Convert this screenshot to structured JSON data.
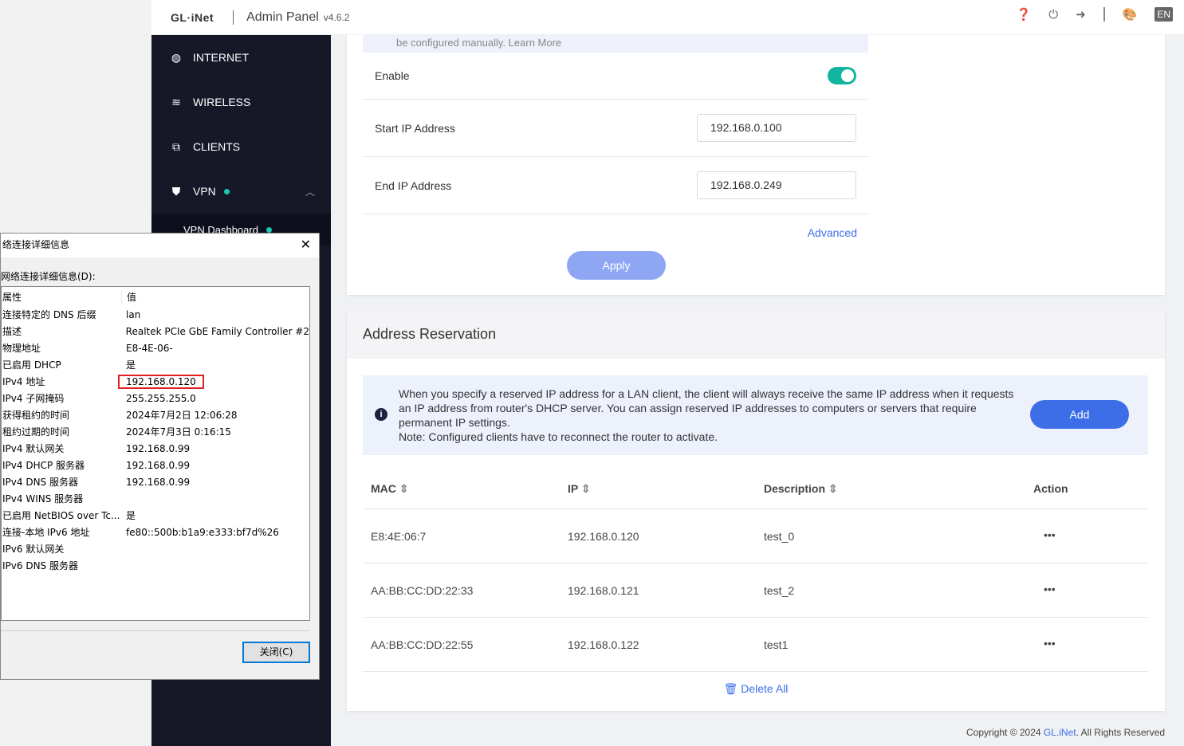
{
  "header": {
    "logo": "GL·iNet",
    "title": "Admin Panel",
    "version": "v4.6.2",
    "lang": "EN",
    "icons": [
      "help-icon",
      "power-icon",
      "logout-icon",
      "theme-palette-icon"
    ]
  },
  "sidebar": {
    "items": [
      {
        "label": "INTERNET",
        "icon": "globe-icon"
      },
      {
        "label": "WIRELESS",
        "icon": "wifi-icon"
      },
      {
        "label": "CLIENTS",
        "icon": "clients-icon"
      },
      {
        "label": "VPN",
        "icon": "shield-icon"
      }
    ],
    "sub": "VPN Dashboard"
  },
  "dhcp": {
    "note": "be configured manually. Learn More",
    "enable_label": "Enable",
    "enabled": true,
    "start_label": "Start IP Address",
    "start_value": "192.168.0.100",
    "end_label": "End IP Address",
    "end_value": "192.168.0.249",
    "advanced": "Advanced",
    "apply": "Apply"
  },
  "reservation": {
    "title": "Address Reservation",
    "info": "When you specify a reserved IP address for a LAN client, the client will always receive the same IP address when it requests an IP address from router's DHCP server. You can assign reserved IP addresses to computers or servers that require permanent IP settings.",
    "note": "Note: Configured clients have to reconnect the router to activate.",
    "add": "Add",
    "columns": [
      "MAC",
      "IP",
      "Description",
      "Action"
    ],
    "rows": [
      {
        "mac": "E8:4E:06:7",
        "ip": "192.168.0.120",
        "desc": "test_0",
        "action": "•••"
      },
      {
        "mac": "AA:BB:CC:DD:22:33",
        "ip": "192.168.0.121",
        "desc": "test_2",
        "action": "•••"
      },
      {
        "mac": "AA:BB:CC:DD:22:55",
        "ip": "192.168.0.122",
        "desc": "test1",
        "action": "•••"
      }
    ],
    "delete_all": "Delete All"
  },
  "footer": {
    "pre": "Copyright © 2024 ",
    "brand": "GL.iNet",
    "post": ". All Rights Reserved"
  },
  "dialog": {
    "title": "络连接详细信息",
    "label": "网络连接详细信息(D):",
    "col_prop": "属性",
    "col_val": "值",
    "close": "关闭(C)",
    "highlight_color": "#e02020",
    "rows": [
      [
        "连接特定的 DNS 后缀",
        "lan"
      ],
      [
        "描述",
        "Realtek PCIe GbE Family Controller #2"
      ],
      [
        "物理地址",
        "E8-4E-06-"
      ],
      [
        "已启用 DHCP",
        "是"
      ],
      [
        "IPv4 地址",
        "192.168.0.120"
      ],
      [
        "IPv4 子网掩码",
        "255.255.255.0"
      ],
      [
        "获得租约的时间",
        "2024年7月2日 12:06:28"
      ],
      [
        "租约过期的时间",
        "2024年7月3日 0:16:15"
      ],
      [
        "IPv4 默认网关",
        "192.168.0.99"
      ],
      [
        "IPv4 DHCP 服务器",
        "192.168.0.99"
      ],
      [
        "IPv4 DNS 服务器",
        "192.168.0.99"
      ],
      [
        "IPv4 WINS 服务器",
        ""
      ],
      [
        "已启用 NetBIOS over Tc...",
        "是"
      ],
      [
        "连接-本地 IPv6 地址",
        "fe80::500b:b1a9:e333:bf7d%26"
      ],
      [
        "IPv6 默认网关",
        ""
      ],
      [
        "IPv6 DNS 服务器",
        ""
      ]
    ]
  }
}
